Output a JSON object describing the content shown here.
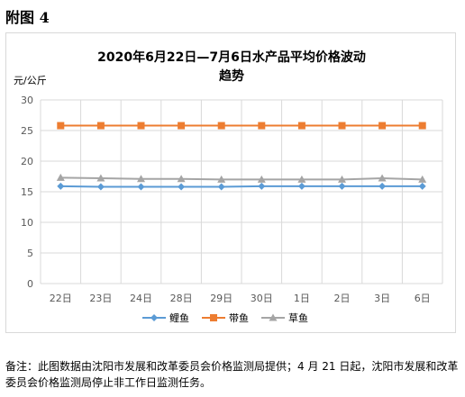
{
  "figure_label": "附图 4",
  "note": "备注：此图数据由沈阳市发展和改革委员会价格监测局提供；4 月 21 日起，沈阳市发展和改革委员会价格监测局停止非工作日监测任务。",
  "colors": {
    "鲤鱼": "#5b9bd5",
    "带鱼": "#ed7d31",
    "草鱼": "#a5a5a5",
    "grid": "#d9d9d9"
  },
  "chart_data": {
    "type": "line",
    "title_lines": [
      "2020年6月22日—7月6日水产品平均价格波动",
      "趋势"
    ],
    "ylabel": "元/公斤",
    "xlabel": "",
    "categories": [
      "22日",
      "23日",
      "24日",
      "28日",
      "29日",
      "30日",
      "1日",
      "2日",
      "3日",
      "6日"
    ],
    "ylim": [
      0,
      30
    ],
    "yticks": [
      0,
      5,
      10,
      15,
      20,
      25,
      30
    ],
    "grid": true,
    "legend": "bottom",
    "series": [
      {
        "name": "鲤鱼",
        "marker": "diamond",
        "values": [
          15.9,
          15.8,
          15.8,
          15.8,
          15.8,
          15.9,
          15.9,
          15.9,
          15.9,
          15.9
        ]
      },
      {
        "name": "带鱼",
        "marker": "square",
        "values": [
          25.8,
          25.8,
          25.8,
          25.8,
          25.8,
          25.8,
          25.8,
          25.8,
          25.8,
          25.8
        ]
      },
      {
        "name": "草鱼",
        "marker": "triangle",
        "values": [
          17.3,
          17.2,
          17.1,
          17.1,
          17.0,
          17.0,
          17.0,
          17.0,
          17.2,
          17.0
        ]
      }
    ]
  }
}
